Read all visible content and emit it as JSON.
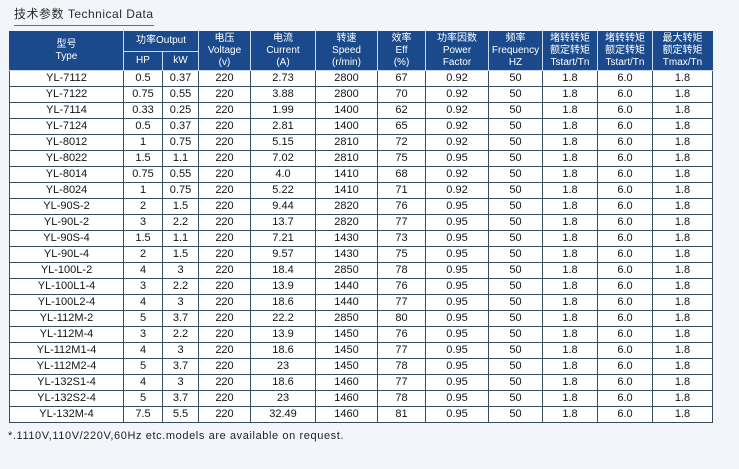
{
  "title": "技术参数 Technical Data",
  "colors": {
    "header_bg": "#1b4a8c",
    "header_text": "#ffffff",
    "body_bg": "#ffffff",
    "body_text": "#141414",
    "border": "#3a4c60",
    "page_bg": "#f2f6fa"
  },
  "table": {
    "header": {
      "type": {
        "lines": [
          "型号",
          "Type"
        ]
      },
      "output": {
        "label": "功率Output",
        "sub": [
          "HP",
          "kW"
        ]
      },
      "voltage": {
        "lines": [
          "电压",
          "Voltage",
          "(v)"
        ]
      },
      "current": {
        "lines": [
          "电流",
          "Current",
          "(A)"
        ]
      },
      "speed": {
        "lines": [
          "转速",
          "Speed",
          "(r/min)"
        ]
      },
      "eff": {
        "lines": [
          "效率",
          "Eff",
          "(%)"
        ]
      },
      "power_factor": {
        "lines": [
          "功率因数",
          "Power",
          "Factor"
        ]
      },
      "frequency": {
        "lines": [
          "频率",
          "Frequency",
          "HZ"
        ]
      },
      "tstart1": {
        "lines": [
          "堵转转矩",
          "额定转矩",
          "Tstart/Tn"
        ]
      },
      "tstart2": {
        "lines": [
          "堵转转矩",
          "额定转矩",
          "Tstart/Tn"
        ]
      },
      "tmax": {
        "lines": [
          "最大转矩",
          "额定转矩",
          "Tmax/Tn"
        ]
      }
    },
    "rows": [
      [
        "YL-7112",
        "0.5",
        "0.37",
        "220",
        "2.73",
        "2800",
        "67",
        "0.92",
        "50",
        "1.8",
        "6.0",
        "1.8"
      ],
      [
        "YL-7122",
        "0.75",
        "0.55",
        "220",
        "3.88",
        "2800",
        "70",
        "0.92",
        "50",
        "1.8",
        "6.0",
        "1.8"
      ],
      [
        "YL-7114",
        "0.33",
        "0.25",
        "220",
        "1.99",
        "1400",
        "62",
        "0.92",
        "50",
        "1.8",
        "6.0",
        "1.8"
      ],
      [
        "YL-7124",
        "0.5",
        "0.37",
        "220",
        "2.81",
        "1400",
        "65",
        "0.92",
        "50",
        "1.8",
        "6.0",
        "1.8"
      ],
      [
        "YL-8012",
        "1",
        "0.75",
        "220",
        "5.15",
        "2810",
        "72",
        "0.92",
        "50",
        "1.8",
        "6.0",
        "1.8"
      ],
      [
        "YL-8022",
        "1.5",
        "1.1",
        "220",
        "7.02",
        "2810",
        "75",
        "0.95",
        "50",
        "1.8",
        "6.0",
        "1.8"
      ],
      [
        "YL-8014",
        "0.75",
        "0.55",
        "220",
        "4.0",
        "1410",
        "68",
        "0.92",
        "50",
        "1.8",
        "6.0",
        "1.8"
      ],
      [
        "YL-8024",
        "1",
        "0.75",
        "220",
        "5.22",
        "1410",
        "71",
        "0.92",
        "50",
        "1.8",
        "6.0",
        "1.8"
      ],
      [
        "YL-90S-2",
        "2",
        "1.5",
        "220",
        "9.44",
        "2820",
        "76",
        "0.95",
        "50",
        "1.8",
        "6.0",
        "1.8"
      ],
      [
        "YL-90L-2",
        "3",
        "2.2",
        "220",
        "13.7",
        "2820",
        "77",
        "0.95",
        "50",
        "1.8",
        "6.0",
        "1.8"
      ],
      [
        "YL-90S-4",
        "1.5",
        "1.1",
        "220",
        "7.21",
        "1430",
        "73",
        "0.95",
        "50",
        "1.8",
        "6.0",
        "1.8"
      ],
      [
        "YL-90L-4",
        "2",
        "1.5",
        "220",
        "9.57",
        "1430",
        "75",
        "0.95",
        "50",
        "1.8",
        "6.0",
        "1.8"
      ],
      [
        "YL-100L-2",
        "4",
        "3",
        "220",
        "18.4",
        "2850",
        "78",
        "0.95",
        "50",
        "1.8",
        "6.0",
        "1.8"
      ],
      [
        "YL-100L1-4",
        "3",
        "2.2",
        "220",
        "13.9",
        "1440",
        "76",
        "0.95",
        "50",
        "1.8",
        "6.0",
        "1.8"
      ],
      [
        "YL-100L2-4",
        "4",
        "3",
        "220",
        "18.6",
        "1440",
        "77",
        "0.95",
        "50",
        "1.8",
        "6.0",
        "1.8"
      ],
      [
        "YL-112M-2",
        "5",
        "3.7",
        "220",
        "22.2",
        "2850",
        "80",
        "0.95",
        "50",
        "1.8",
        "6.0",
        "1.8"
      ],
      [
        "YL-112M-4",
        "3",
        "2.2",
        "220",
        "13.9",
        "1450",
        "76",
        "0.95",
        "50",
        "1.8",
        "6.0",
        "1.8"
      ],
      [
        "YL-112M1-4",
        "4",
        "3",
        "220",
        "18.6",
        "1450",
        "77",
        "0.95",
        "50",
        "1.8",
        "6.0",
        "1.8"
      ],
      [
        "YL-112M2-4",
        "5",
        "3.7",
        "220",
        "23",
        "1450",
        "78",
        "0.95",
        "50",
        "1.8",
        "6.0",
        "1.8"
      ],
      [
        "YL-132S1-4",
        "4",
        "3",
        "220",
        "18.6",
        "1460",
        "77",
        "0.95",
        "50",
        "1.8",
        "6.0",
        "1.8"
      ],
      [
        "YL-132S2-4",
        "5",
        "3.7",
        "220",
        "23",
        "1460",
        "78",
        "0.95",
        "50",
        "1.8",
        "6.0",
        "1.8"
      ],
      [
        "YL-132M-4",
        "7.5",
        "5.5",
        "220",
        "32.49",
        "1460",
        "81",
        "0.95",
        "50",
        "1.8",
        "6.0",
        "1.8"
      ]
    ]
  },
  "footnote": "*.1110V,110V/220V,60Hz etc.models are available on request."
}
